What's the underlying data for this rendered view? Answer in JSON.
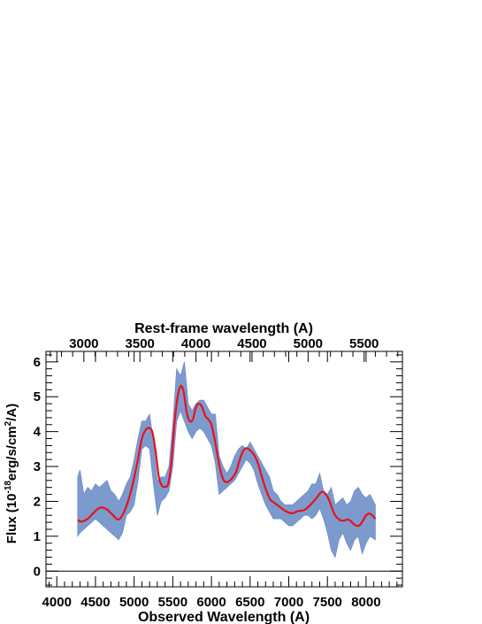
{
  "chart_data": {
    "type": "line",
    "title": "",
    "top_axis_label": "Rest-frame wavelength (A)",
    "xlabel": "Observed Wavelength (A)",
    "ylabel_main": "Flux (10",
    "ylabel_sup1": "-18",
    "ylabel_mid": "erg/s/cm",
    "ylabel_sup2": "2",
    "ylabel_end": "/A)",
    "xlim": [
      3860,
      8470
    ],
    "ylim": [
      -0.45,
      6.3
    ],
    "x_ticks": [
      "4000",
      "4500",
      "5000",
      "5500",
      "6000",
      "6500",
      "7000",
      "7500",
      "8000"
    ],
    "y_ticks": [
      "0",
      "1",
      "2",
      "3",
      "4",
      "5",
      "6"
    ],
    "top_ticks": [
      "3000",
      "3500",
      "4000",
      "4500",
      "5000",
      "5500"
    ],
    "rest_frame_factor": 1.45,
    "zero_line": 0,
    "grid": false,
    "series": [
      {
        "color": "#6f8fc8",
        "style": "band",
        "x": [
          4270,
          4300,
          4350,
          4400,
          4450,
          4500,
          4550,
          4600,
          4650,
          4700,
          4750,
          4800,
          4850,
          4900,
          4950,
          5000,
          5050,
          5100,
          5150,
          5200,
          5250,
          5300,
          5350,
          5400,
          5450,
          5500,
          5550,
          5600,
          5650,
          5700,
          5750,
          5800,
          5850,
          5900,
          5950,
          6000,
          6050,
          6100,
          6150,
          6200,
          6250,
          6300,
          6350,
          6400,
          6450,
          6500,
          6550,
          6600,
          6650,
          6700,
          6750,
          6800,
          6850,
          6900,
          6950,
          7000,
          7050,
          7100,
          7150,
          7200,
          7250,
          7300,
          7350,
          7400,
          7450,
          7500,
          7550,
          7600,
          7650,
          7700,
          7750,
          7800,
          7850,
          7900,
          7950,
          8000,
          8050,
          8120
        ],
        "upper": [
          2.7,
          2.9,
          2.2,
          2.4,
          2.3,
          2.5,
          2.4,
          2.5,
          2.6,
          2.3,
          2.2,
          2.0,
          2.2,
          2.5,
          2.7,
          3.2,
          3.8,
          4.3,
          4.3,
          4.5,
          3.7,
          2.6,
          2.7,
          2.7,
          3.0,
          4.2,
          5.8,
          5.6,
          6.0,
          4.8,
          4.6,
          4.8,
          4.9,
          4.9,
          4.7,
          4.5,
          4.5,
          3.3,
          3.0,
          2.8,
          3.0,
          3.3,
          3.5,
          3.6,
          3.5,
          3.7,
          3.5,
          3.3,
          3.1,
          2.9,
          2.7,
          2.3,
          2.2,
          2.0,
          1.9,
          1.9,
          1.9,
          2.0,
          2.1,
          2.2,
          2.3,
          2.5,
          2.5,
          2.8,
          2.3,
          2.2,
          2.4,
          1.9,
          2.0,
          2.1,
          1.9,
          2.0,
          2.3,
          2.4,
          2.2,
          2.1,
          2.2,
          1.9
        ],
        "lower": [
          1.0,
          1.1,
          1.2,
          1.3,
          1.4,
          1.5,
          1.4,
          1.3,
          1.2,
          1.1,
          1.0,
          0.9,
          1.1,
          1.6,
          1.7,
          1.9,
          2.6,
          3.5,
          3.6,
          3.5,
          2.5,
          1.6,
          2.0,
          2.1,
          2.3,
          3.0,
          4.3,
          4.6,
          4.3,
          4.0,
          3.8,
          4.0,
          4.1,
          4.0,
          3.8,
          3.6,
          3.1,
          2.2,
          2.3,
          2.4,
          2.5,
          2.6,
          2.8,
          3.0,
          3.2,
          3.1,
          2.9,
          2.5,
          2.2,
          1.9,
          1.7,
          1.5,
          1.5,
          1.5,
          1.4,
          1.3,
          1.3,
          1.4,
          1.5,
          1.6,
          1.6,
          1.5,
          1.6,
          1.8,
          1.5,
          1.1,
          0.6,
          0.4,
          0.9,
          1.1,
          0.8,
          0.6,
          0.9,
          1.0,
          0.5,
          0.8,
          1.0,
          0.9
        ]
      },
      {
        "color": "#e8101a",
        "style": "line",
        "x": [
          4270,
          4320,
          4400,
          4480,
          4560,
          4640,
          4720,
          4800,
          4880,
          4960,
          5040,
          5100,
          5150,
          5200,
          5240,
          5280,
          5320,
          5360,
          5400,
          5440,
          5480,
          5520,
          5560,
          5600,
          5640,
          5680,
          5720,
          5760,
          5800,
          5840,
          5880,
          5920,
          5960,
          6000,
          6040,
          6080,
          6120,
          6160,
          6200,
          6240,
          6280,
          6320,
          6360,
          6400,
          6440,
          6480,
          6520,
          6560,
          6600,
          6640,
          6680,
          6720,
          6760,
          6800,
          6880,
          6960,
          7040,
          7120,
          7200,
          7280,
          7360,
          7400,
          7440,
          7480,
          7520,
          7560,
          7600,
          7640,
          7680,
          7720,
          7760,
          7800,
          7840,
          7880,
          7920,
          7960,
          8000,
          8040,
          8080,
          8120
        ],
        "y": [
          1.47,
          1.42,
          1.5,
          1.68,
          1.82,
          1.78,
          1.62,
          1.48,
          1.75,
          2.3,
          3.1,
          3.8,
          4.05,
          4.1,
          3.95,
          3.4,
          2.7,
          2.45,
          2.42,
          2.5,
          3.1,
          4.2,
          4.95,
          5.3,
          5.15,
          4.55,
          4.3,
          4.35,
          4.7,
          4.8,
          4.7,
          4.45,
          4.35,
          4.2,
          3.8,
          3.3,
          2.85,
          2.6,
          2.55,
          2.6,
          2.7,
          2.85,
          3.15,
          3.4,
          3.52,
          3.5,
          3.42,
          3.3,
          3.1,
          2.8,
          2.5,
          2.25,
          2.05,
          1.98,
          1.85,
          1.72,
          1.66,
          1.72,
          1.75,
          1.9,
          2.1,
          2.22,
          2.28,
          2.2,
          2.05,
          1.8,
          1.6,
          1.5,
          1.45,
          1.45,
          1.48,
          1.44,
          1.35,
          1.3,
          1.32,
          1.45,
          1.6,
          1.65,
          1.6,
          1.5
        ]
      }
    ]
  }
}
